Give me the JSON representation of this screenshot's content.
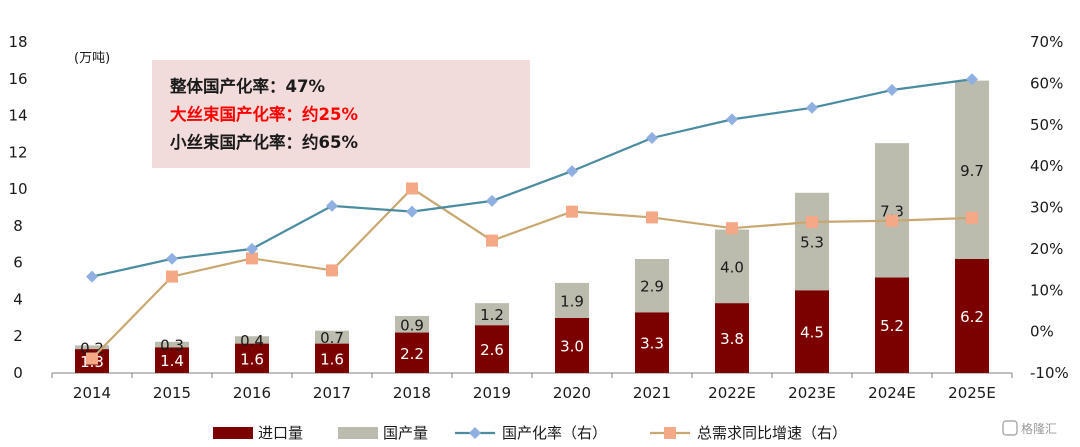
{
  "chart_data": {
    "type": "bar",
    "stacked": true,
    "unit_label": "(万吨)",
    "categories": [
      "2014",
      "2015",
      "2016",
      "2017",
      "2018",
      "2019",
      "2020",
      "2021",
      "2022E",
      "2023E",
      "2024E",
      "2025E"
    ],
    "series": [
      {
        "name": "进口量",
        "type": "bar",
        "axis": "left",
        "color": "#7b0000",
        "values": [
          1.3,
          1.4,
          1.6,
          1.6,
          2.2,
          2.6,
          3.0,
          3.3,
          3.8,
          4.5,
          5.2,
          6.2
        ],
        "labels": [
          "1.3",
          "1.4",
          "1.6",
          "1.6",
          "2.2",
          "2.6",
          "3.0",
          "3.3",
          "3.8",
          "4.5",
          "5.2",
          "6.2"
        ]
      },
      {
        "name": "国产量",
        "type": "bar",
        "axis": "left",
        "color": "#bcbcae",
        "values": [
          0.2,
          0.3,
          0.4,
          0.7,
          0.9,
          1.2,
          1.9,
          2.9,
          4.0,
          5.3,
          7.3,
          9.7
        ],
        "labels": [
          "0.2",
          "0.3",
          "0.4",
          "0.7",
          "0.9",
          "1.2",
          "1.9",
          "2.9",
          "4.0",
          "5.3",
          "7.3",
          "9.7"
        ]
      },
      {
        "name": "国产化率（右）",
        "type": "line",
        "axis": "right",
        "color": "#4a8ca0",
        "marker_color": "#8fb0e0",
        "values": [
          13.3,
          17.6,
          20.0,
          30.4,
          29.0,
          31.6,
          38.8,
          46.8,
          51.3,
          54.1,
          58.4,
          61.0
        ]
      },
      {
        "name": "总需求同比增速（右）",
        "type": "line",
        "axis": "right",
        "color": "#c8a870",
        "marker_color": "#f4a886",
        "values": [
          -6.5,
          13.3,
          17.7,
          14.8,
          34.6,
          22.0,
          29.0,
          27.6,
          25.0,
          26.5,
          26.8,
          27.5
        ]
      }
    ],
    "y_left": {
      "min": 0,
      "max": 18,
      "step": 2,
      "ticks": [
        "0",
        "2",
        "4",
        "6",
        "8",
        "10",
        "12",
        "14",
        "16",
        "18"
      ]
    },
    "y_right": {
      "min": -10,
      "max": 70,
      "step": 10,
      "ticks": [
        "-10%",
        "0%",
        "10%",
        "20%",
        "30%",
        "40%",
        "50%",
        "60%",
        "70%"
      ]
    },
    "legend_position": "bottom",
    "grid": false,
    "annotation": {
      "background": "#f2dcdb",
      "lines": [
        {
          "text": "整体国产化率：47%",
          "color": "#1a1a1a"
        },
        {
          "text": "大丝束国产化率：约25%",
          "color": "#ff0000"
        },
        {
          "text": "小丝束国产化率：约65%",
          "color": "#1a1a1a"
        }
      ]
    }
  },
  "watermark": "格隆汇"
}
